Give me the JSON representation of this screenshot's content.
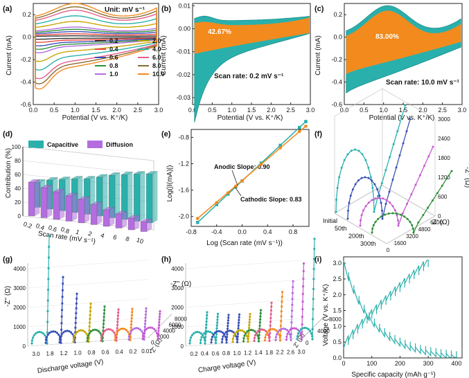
{
  "colors": {
    "teal": "#2ab0ac",
    "orange": "#f28a1e",
    "purple": "#b46de0",
    "blue": "#3a4fb8",
    "magenta": "#c65bd1",
    "green": "#2f8f3a",
    "dark": "#333333",
    "darkgreen": "#1f6f3a"
  },
  "chart_data": [
    {
      "id": "a",
      "type": "line",
      "panel_label": "(a)",
      "annotation": "Unit: mV s⁻¹",
      "xlabel": "Potential (V vs. K⁺/K)",
      "ylabel": "Current (mA)",
      "xlim": [
        0,
        3.0
      ],
      "ylim": [
        -0.6,
        0.3
      ],
      "xticks": [
        "0.0",
        "0.5",
        "1.0",
        "1.5",
        "2.0",
        "2.5",
        "3.0"
      ],
      "yticks": [
        "-0.6",
        "-0.4",
        "-0.2",
        "0.0",
        "0.2"
      ],
      "series": [
        {
          "name": "0.2",
          "color": "#333333",
          "amp": 0.012
        },
        {
          "name": "0.4",
          "color": "#e8463c",
          "amp": 0.03
        },
        {
          "name": "0.6",
          "color": "#3a4fb8",
          "amp": 0.05
        },
        {
          "name": "0.8",
          "color": "#2f8f3a",
          "amp": 0.07
        },
        {
          "name": "1.0",
          "color": "#b46de0",
          "amp": 0.09
        },
        {
          "name": "2.0",
          "color": "#c8a600",
          "amp": 0.14
        },
        {
          "name": "4.0",
          "color": "#2ab0ac",
          "amp": 0.19
        },
        {
          "name": "6.0",
          "color": "#e35d8c",
          "amp": 0.24
        },
        {
          "name": "8.0",
          "color": "#8a6a2f",
          "amp": 0.27
        },
        {
          "name": "10.0",
          "color": "#f28a1e",
          "amp": 0.3
        }
      ]
    },
    {
      "id": "b",
      "type": "area",
      "panel_label": "(b)",
      "percent": "42.67%",
      "annotation": "Scan rate: 0.2 mV s⁻¹",
      "xlabel": "Potential (V vs. K⁺/K)",
      "ylabel": "Current (mA)",
      "xlim": [
        0,
        3.0
      ],
      "ylim": [
        -0.033,
        0.011
      ],
      "xticks": [
        "0.0",
        "0.5",
        "1.0",
        "1.5",
        "2.0",
        "2.5",
        "3.0"
      ],
      "yticks": [
        "-0.03",
        "-0.02",
        "-0.01",
        "0.00",
        "0.01"
      ]
    },
    {
      "id": "c",
      "type": "area",
      "panel_label": "(c)",
      "percent": "83.00%",
      "annotation": "Scan rate: 10.0 mV s⁻¹",
      "xlabel": "Potential (V vs. K⁺/K)",
      "ylabel": "Current (mA)",
      "xlim": [
        0,
        3.0
      ],
      "ylim": [
        -0.6,
        0.3
      ],
      "xticks": [
        "0.0",
        "0.5",
        "1.0",
        "1.5",
        "2.0",
        "2.5",
        "3.0"
      ],
      "yticks": [
        "-0.6",
        "-0.4",
        "-0.2",
        "0.0",
        "0.2"
      ]
    },
    {
      "id": "d",
      "type": "bar",
      "panel_label": "(d)",
      "categories": [
        "0.2",
        "0.4",
        "0.6",
        "0.8",
        "1",
        "2",
        "4",
        "6",
        "8",
        "10"
      ],
      "series": [
        {
          "name": "Capacitive",
          "color": "#2ab0ac",
          "values": [
            42.67,
            49,
            53,
            57,
            60,
            66,
            72,
            76,
            80,
            83
          ]
        },
        {
          "name": "Diffusion",
          "color": "#b46de0",
          "values": [
            57.33,
            51,
            47,
            43,
            40,
            34,
            28,
            24,
            20,
            17
          ]
        }
      ],
      "xlabel": "Scan rate (mV s⁻¹)",
      "ylabel": "Contribution (%)",
      "ylim": [
        0,
        100
      ],
      "yticks": [
        "0",
        "20",
        "40",
        "60",
        "80",
        "100"
      ]
    },
    {
      "id": "e",
      "type": "scatter",
      "panel_label": "(e)",
      "xlabel": "Log (Scan rate (mV s⁻¹))",
      "ylabel": "Log(|I(mA)|)",
      "xlim": [
        -0.8,
        1.05
      ],
      "ylim": [
        -2.15,
        -0.68
      ],
      "xticks": [
        "-0.8",
        "-0.4",
        "0.0",
        "0.4",
        "0.8"
      ],
      "yticks": [
        "-2.0",
        "-1.6",
        "-1.2",
        "-0.8"
      ],
      "x": [
        -0.7,
        -0.4,
        -0.22,
        -0.1,
        0,
        0.3,
        0.6,
        0.9,
        1.0
      ],
      "series": [
        {
          "name": "Anodic Slope: 0.90",
          "color": "#2ab0ac",
          "values": [
            -2.09,
            -1.82,
            -1.66,
            -1.55,
            -1.46,
            -1.19,
            -0.92,
            -0.65,
            -0.56
          ]
        },
        {
          "name": "Cathodic Slope: 0.83",
          "color": "#f28a1e",
          "values": [
            -2.03,
            -1.79,
            -1.64,
            -1.54,
            -1.46,
            -1.21,
            -0.96,
            -0.71,
            -0.63
          ]
        }
      ]
    },
    {
      "id": "f",
      "type": "line",
      "panel_label": "(f)",
      "xlabel": "Z' (Ω)",
      "zlabel": "-Z'' (Ω)",
      "xticks": [
        "0",
        "1600",
        "3200",
        "4800",
        "6400"
      ],
      "zticks": [
        "0",
        "600",
        "1200",
        "1800",
        "2400",
        "3000"
      ],
      "series": [
        {
          "name": "Initial",
          "color": "#2ab0ac"
        },
        {
          "name": "50th",
          "color": "#3a4fb8"
        },
        {
          "name": "200th",
          "color": "#c65bd1"
        },
        {
          "name": "300th",
          "color": "#2f8f3a"
        }
      ]
    },
    {
      "id": "g",
      "type": "line",
      "panel_label": "(g)",
      "xlabel": "Discharge voltage (V)",
      "ylabel": "-Z'' (Ω)",
      "depthlabel": "Z' (Ω)",
      "categories": [
        "3.0",
        "1.8",
        "1.2",
        "1.0",
        "0.8",
        "0.6",
        "0.4",
        "0.2",
        "0.01"
      ],
      "zticks": [
        "0",
        "1000",
        "2000",
        "3000",
        "4000"
      ],
      "depthticks": [
        "0",
        "2000",
        "4000",
        "6000",
        "8000"
      ]
    },
    {
      "id": "h",
      "type": "line",
      "panel_label": "(h)",
      "xlabel": "Charge voltage (V)",
      "ylabel": "-Z'' (Ω)",
      "depthlabel": "Z' (Ω)",
      "categories": [
        "0.2",
        "0.4",
        "0.6",
        "0.8",
        "1.0",
        "1.2",
        "1.4",
        "1.8",
        "2.2",
        "2.6",
        "3.0"
      ],
      "zticks": [
        "0",
        "1000",
        "2000",
        "3000",
        "4000"
      ],
      "depthticks": [
        "0",
        "4000",
        "8000"
      ]
    },
    {
      "id": "i",
      "type": "line",
      "panel_label": "(i)",
      "xlabel": "Specific capacity (mAh g⁻¹)",
      "ylabel": "Voltage (V vs. K⁺/K)",
      "xlim": [
        0,
        420
      ],
      "ylim": [
        0,
        3.2
      ],
      "xticks": [
        "0",
        "100",
        "200",
        "300",
        "400"
      ],
      "yticks": [
        "0.0",
        "0.5",
        "1.0",
        "1.5",
        "2.0",
        "2.5",
        "3.0"
      ],
      "discharge_capacity": 400,
      "charge_capacity": 300
    }
  ]
}
